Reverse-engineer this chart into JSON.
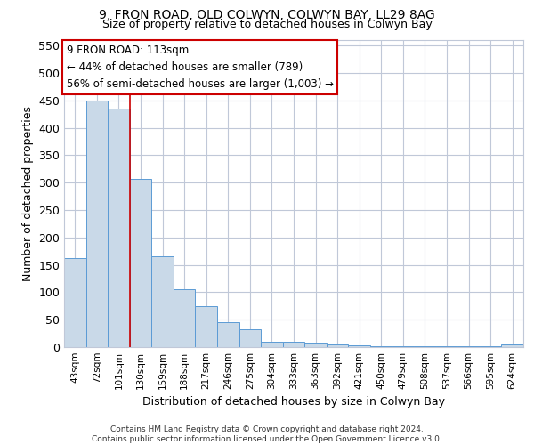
{
  "title1": "9, FRON ROAD, OLD COLWYN, COLWYN BAY, LL29 8AG",
  "title2": "Size of property relative to detached houses in Colwyn Bay",
  "xlabel": "Distribution of detached houses by size in Colwyn Bay",
  "ylabel": "Number of detached properties",
  "categories": [
    "43sqm",
    "72sqm",
    "101sqm",
    "130sqm",
    "159sqm",
    "188sqm",
    "217sqm",
    "246sqm",
    "275sqm",
    "304sqm",
    "333sqm",
    "363sqm",
    "392sqm",
    "421sqm",
    "450sqm",
    "479sqm",
    "508sqm",
    "537sqm",
    "566sqm",
    "595sqm",
    "624sqm"
  ],
  "values": [
    163,
    450,
    435,
    306,
    165,
    106,
    74,
    45,
    32,
    10,
    10,
    8,
    5,
    4,
    2,
    2,
    2,
    1,
    1,
    1,
    5
  ],
  "bar_color": "#c9d9e8",
  "bar_edge_color": "#5b9bd5",
  "grid_color": "#c0c8d8",
  "annotation_text": "9 FRON ROAD: 113sqm\n← 44% of detached houses are smaller (789)\n56% of semi-detached houses are larger (1,003) →",
  "vline_x_index": 2.5,
  "vline_color": "#cc0000",
  "box_color": "#cc0000",
  "footer1": "Contains HM Land Registry data © Crown copyright and database right 2024.",
  "footer2": "Contains public sector information licensed under the Open Government Licence v3.0.",
  "ylim": [
    0,
    560
  ],
  "yticks": [
    0,
    50,
    100,
    150,
    200,
    250,
    300,
    350,
    400,
    450,
    500,
    550
  ]
}
